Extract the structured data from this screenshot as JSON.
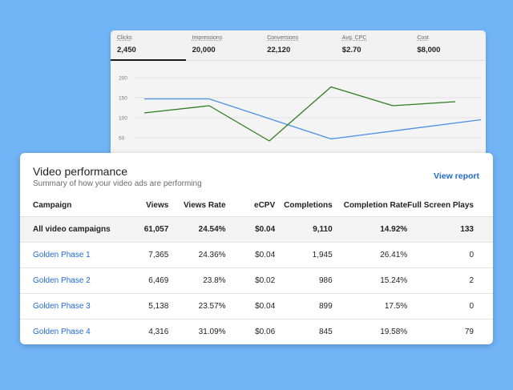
{
  "metrics": [
    {
      "label": "Clicks",
      "value": "2,450",
      "active": true
    },
    {
      "label": "Impressions",
      "value": "20,000",
      "active": false
    },
    {
      "label": "Conversions",
      "value": "22,120",
      "active": false
    },
    {
      "label": "Avg. CPC",
      "value": "$2.70",
      "active": false
    },
    {
      "label": "Cost",
      "value": "$8,000",
      "active": false
    }
  ],
  "chart_data": {
    "type": "line",
    "x": [
      0,
      1,
      2,
      3,
      4,
      5,
      6
    ],
    "ylim": [
      30,
      200
    ],
    "ytick_labels": [
      "200",
      "150",
      "100",
      "50"
    ],
    "series": [
      {
        "color": "#4a90e2",
        "values": [
          147,
          147,
          null,
          47,
          null,
          null,
          95
        ]
      },
      {
        "color": "#2e7d1f",
        "values": [
          112,
          130,
          42,
          177,
          130,
          140,
          null
        ]
      }
    ]
  },
  "panel": {
    "title": "Video performance",
    "subtitle": "Summary of how your video ads are performing",
    "view_report": "View report"
  },
  "table": {
    "headers": [
      "Campaign",
      "Views",
      "Views Rate",
      "eCPV",
      "Completions",
      "Completion Rate",
      "Full Screen Plays"
    ],
    "total": [
      "All video campaigns",
      "61,057",
      "24.54%",
      "$0.04",
      "9,110",
      "14.92%",
      "133"
    ],
    "rows": [
      [
        "Golden Phase 1",
        "7,365",
        "24.36%",
        "$0.04",
        "1,945",
        "26.41%",
        "0"
      ],
      [
        "Golden Phase 2",
        "6,469",
        "23.8%",
        "$0.02",
        "986",
        "15.24%",
        "2"
      ],
      [
        "Golden Phase 3",
        "5,138",
        "23.57%",
        "$0.04",
        "899",
        "17.5%",
        "0"
      ],
      [
        "Golden Phase 4",
        "4,316",
        "31.09%",
        "$0.06",
        "845",
        "19.58%",
        "79"
      ]
    ]
  }
}
